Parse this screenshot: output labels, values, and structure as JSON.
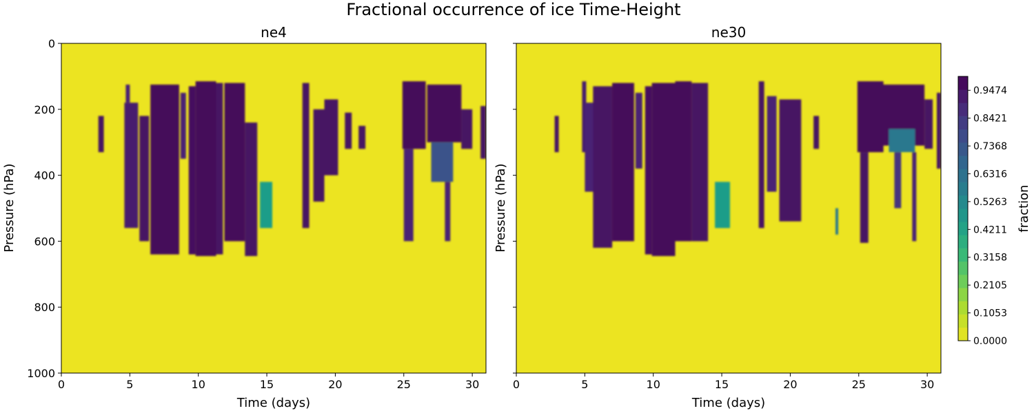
{
  "chart_data": {
    "type": "heatmap",
    "suptitle": "Fractional occurrence of ice Time-Height",
    "colormap": "viridis_r",
    "panels": [
      {
        "title": "ne4",
        "xlabel": "Time (days)",
        "ylabel": "Pressure (hPa)",
        "xlim": [
          0,
          31
        ],
        "ylim": [
          1000,
          0
        ],
        "xticks": [
          0,
          5,
          10,
          15,
          20,
          25,
          30
        ],
        "yticks": [
          0,
          200,
          400,
          600,
          800,
          1000
        ],
        "show_ytick_labels": true,
        "cloud_features": [
          {
            "t0": 2.7,
            "t1": 3.1,
            "p_top": 220,
            "p_bot": 330,
            "value": 0.95
          },
          {
            "t0": 4.7,
            "t1": 5.0,
            "p_top": 125,
            "p_bot": 180,
            "value": 0.9
          },
          {
            "t0": 4.6,
            "t1": 5.6,
            "p_top": 180,
            "p_bot": 560,
            "value": 0.92
          },
          {
            "t0": 5.7,
            "t1": 6.4,
            "p_top": 220,
            "p_bot": 600,
            "value": 0.95
          },
          {
            "t0": 6.5,
            "t1": 8.6,
            "p_top": 125,
            "p_bot": 640,
            "value": 0.98
          },
          {
            "t0": 8.7,
            "t1": 9.1,
            "p_top": 150,
            "p_bot": 350,
            "value": 0.9
          },
          {
            "t0": 9.3,
            "t1": 9.8,
            "p_top": 130,
            "p_bot": 640,
            "value": 0.97
          },
          {
            "t0": 9.8,
            "t1": 11.3,
            "p_top": 115,
            "p_bot": 645,
            "value": 0.98
          },
          {
            "t0": 11.3,
            "t1": 11.8,
            "p_top": 120,
            "p_bot": 640,
            "value": 0.95
          },
          {
            "t0": 11.9,
            "t1": 13.4,
            "p_top": 120,
            "p_bot": 600,
            "value": 0.98
          },
          {
            "t0": 13.4,
            "t1": 14.3,
            "p_top": 240,
            "p_bot": 645,
            "value": 0.95
          },
          {
            "t0": 14.5,
            "t1": 15.4,
            "p_top": 420,
            "p_bot": 560,
            "value": 0.45
          },
          {
            "t0": 17.6,
            "t1": 18.1,
            "p_top": 120,
            "p_bot": 560,
            "value": 0.95
          },
          {
            "t0": 18.4,
            "t1": 19.2,
            "p_top": 200,
            "p_bot": 480,
            "value": 0.95
          },
          {
            "t0": 19.2,
            "t1": 20.2,
            "p_top": 170,
            "p_bot": 400,
            "value": 0.95
          },
          {
            "t0": 20.7,
            "t1": 21.2,
            "p_top": 210,
            "p_bot": 320,
            "value": 0.95
          },
          {
            "t0": 21.7,
            "t1": 22.2,
            "p_top": 250,
            "p_bot": 320,
            "value": 0.95
          },
          {
            "t0": 24.9,
            "t1": 26.6,
            "p_top": 115,
            "p_bot": 320,
            "value": 0.98
          },
          {
            "t0": 25.0,
            "t1": 25.7,
            "p_top": 320,
            "p_bot": 600,
            "value": 0.9
          },
          {
            "t0": 26.7,
            "t1": 29.2,
            "p_top": 125,
            "p_bot": 300,
            "value": 0.98
          },
          {
            "t0": 27.0,
            "t1": 28.6,
            "p_top": 300,
            "p_bot": 420,
            "value": 0.75
          },
          {
            "t0": 28.0,
            "t1": 28.4,
            "p_top": 420,
            "p_bot": 600,
            "value": 0.9
          },
          {
            "t0": 29.2,
            "t1": 30.0,
            "p_top": 200,
            "p_bot": 320,
            "value": 0.95
          },
          {
            "t0": 30.6,
            "t1": 31.0,
            "p_top": 190,
            "p_bot": 350,
            "value": 0.95
          }
        ]
      },
      {
        "title": "ne30",
        "xlabel": "Time (days)",
        "ylabel": "Pressure (hPa)",
        "xlim": [
          0,
          31
        ],
        "ylim": [
          1000,
          0
        ],
        "xticks": [
          0,
          5,
          10,
          15,
          20,
          25,
          30
        ],
        "yticks": [
          0,
          200,
          400,
          600,
          800,
          1000
        ],
        "show_ytick_labels": false,
        "cloud_features": [
          {
            "t0": 2.8,
            "t1": 3.1,
            "p_top": 220,
            "p_bot": 330,
            "value": 0.95
          },
          {
            "t0": 4.8,
            "t1": 5.1,
            "p_top": 115,
            "p_bot": 330,
            "value": 0.92
          },
          {
            "t0": 5.0,
            "t1": 5.8,
            "p_top": 180,
            "p_bot": 450,
            "value": 0.9
          },
          {
            "t0": 5.6,
            "t1": 7.0,
            "p_top": 130,
            "p_bot": 620,
            "value": 0.95
          },
          {
            "t0": 7.0,
            "t1": 8.6,
            "p_top": 120,
            "p_bot": 600,
            "value": 0.98
          },
          {
            "t0": 8.7,
            "t1": 9.2,
            "p_top": 150,
            "p_bot": 380,
            "value": 0.9
          },
          {
            "t0": 9.4,
            "t1": 9.9,
            "p_top": 130,
            "p_bot": 640,
            "value": 0.97
          },
          {
            "t0": 9.9,
            "t1": 11.6,
            "p_top": 120,
            "p_bot": 645,
            "value": 0.98
          },
          {
            "t0": 11.6,
            "t1": 12.8,
            "p_top": 115,
            "p_bot": 600,
            "value": 0.98
          },
          {
            "t0": 12.8,
            "t1": 14.0,
            "p_top": 120,
            "p_bot": 600,
            "value": 0.95
          },
          {
            "t0": 14.5,
            "t1": 15.6,
            "p_top": 420,
            "p_bot": 560,
            "value": 0.45
          },
          {
            "t0": 17.7,
            "t1": 18.1,
            "p_top": 115,
            "p_bot": 560,
            "value": 0.95
          },
          {
            "t0": 18.3,
            "t1": 19.0,
            "p_top": 160,
            "p_bot": 450,
            "value": 0.9
          },
          {
            "t0": 19.2,
            "t1": 20.8,
            "p_top": 170,
            "p_bot": 540,
            "value": 0.95
          },
          {
            "t0": 21.7,
            "t1": 22.1,
            "p_top": 220,
            "p_bot": 320,
            "value": 0.95
          },
          {
            "t0": 23.3,
            "t1": 23.5,
            "p_top": 500,
            "p_bot": 580,
            "value": 0.6
          },
          {
            "t0": 24.9,
            "t1": 26.8,
            "p_top": 115,
            "p_bot": 330,
            "value": 0.98
          },
          {
            "t0": 25.1,
            "t1": 25.7,
            "p_top": 330,
            "p_bot": 605,
            "value": 0.95
          },
          {
            "t0": 26.8,
            "t1": 29.8,
            "p_top": 125,
            "p_bot": 310,
            "value": 0.98
          },
          {
            "t0": 27.2,
            "t1": 29.1,
            "p_top": 260,
            "p_bot": 330,
            "value": 0.6
          },
          {
            "t0": 27.6,
            "t1": 28.1,
            "p_top": 330,
            "p_bot": 500,
            "value": 0.85
          },
          {
            "t0": 28.9,
            "t1": 29.2,
            "p_top": 330,
            "p_bot": 600,
            "value": 0.9
          },
          {
            "t0": 29.8,
            "t1": 30.4,
            "p_top": 170,
            "p_bot": 320,
            "value": 0.95
          },
          {
            "t0": 30.7,
            "t1": 31.0,
            "p_top": 150,
            "p_bot": 380,
            "value": 0.95
          }
        ]
      }
    ],
    "colorbar": {
      "label": "fraction",
      "ticks": [
        "0.0000",
        "0.1053",
        "0.2105",
        "0.3158",
        "0.4211",
        "0.5263",
        "0.6316",
        "0.7368",
        "0.8421",
        "0.9474"
      ],
      "levels": 20,
      "vmin": 0,
      "vmax": 1
    }
  }
}
